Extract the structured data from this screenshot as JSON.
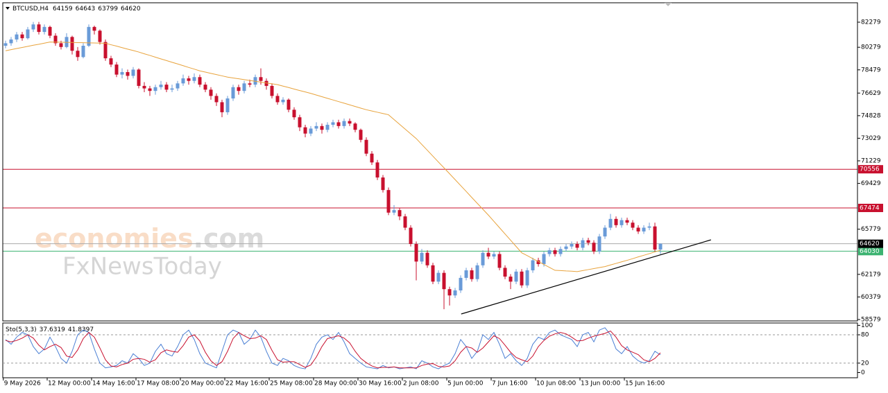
{
  "chart_data": {
    "type": "candlestick",
    "symbol": "BTCUSD,H4",
    "bull_color": "#6a9bd8",
    "bear_color": "#c8102e",
    "candles": [
      [
        80400,
        80800,
        80200,
        80600
      ],
      [
        80600,
        81100,
        80400,
        80900
      ],
      [
        80900,
        81500,
        80700,
        81300
      ],
      [
        81300,
        81500,
        80800,
        81000
      ],
      [
        81000,
        81900,
        80900,
        81700
      ],
      [
        81700,
        82300,
        81500,
        82100
      ],
      [
        82100,
        82300,
        81300,
        81500
      ],
      [
        81500,
        82100,
        81300,
        81900
      ],
      [
        81900,
        82000,
        81000,
        81200
      ],
      [
        81200,
        81400,
        80400,
        80600
      ],
      [
        80600,
        80800,
        80100,
        80300
      ],
      [
        80300,
        81400,
        80200,
        81100
      ],
      [
        81100,
        81200,
        79700,
        80000
      ],
      [
        80000,
        80300,
        79200,
        79500
      ],
      [
        79500,
        80600,
        79400,
        80400
      ],
      [
        80400,
        82100,
        80300,
        81900
      ],
      [
        81900,
        82000,
        81300,
        81600
      ],
      [
        81600,
        81700,
        80500,
        80700
      ],
      [
        80700,
        80900,
        79200,
        79400
      ],
      [
        79400,
        79600,
        78700,
        78900
      ],
      [
        78900,
        79100,
        77900,
        78100
      ],
      [
        78100,
        78600,
        77800,
        78300
      ],
      [
        78300,
        78500,
        77700,
        78000
      ],
      [
        78000,
        78700,
        77800,
        78500
      ],
      [
        78500,
        78600,
        77000,
        77200
      ],
      [
        77200,
        77500,
        76700,
        77000
      ],
      [
        77000,
        77200,
        76400,
        76800
      ],
      [
        76800,
        77300,
        76500,
        77100
      ],
      [
        77100,
        77600,
        76900,
        77300
      ],
      [
        77300,
        77500,
        76700,
        76900
      ],
      [
        76900,
        77300,
        76700,
        77000
      ],
      [
        77000,
        77600,
        76800,
        77400
      ],
      [
        77400,
        78100,
        77200,
        77800
      ],
      [
        77800,
        78000,
        77300,
        77600
      ],
      [
        77600,
        78200,
        77400,
        77900
      ],
      [
        77900,
        78100,
        77100,
        77300
      ],
      [
        77300,
        77500,
        76700,
        76900
      ],
      [
        76900,
        77100,
        76100,
        76400
      ],
      [
        76400,
        76600,
        75600,
        75900
      ],
      [
        75900,
        76100,
        74700,
        75100
      ],
      [
        75100,
        76400,
        74900,
        76200
      ],
      [
        76200,
        77300,
        76000,
        77100
      ],
      [
        77100,
        77300,
        76500,
        76800
      ],
      [
        76800,
        77600,
        76600,
        77400
      ],
      [
        77400,
        77700,
        77100,
        77300
      ],
      [
        77300,
        78100,
        77100,
        77900
      ],
      [
        77900,
        78600,
        77300,
        77600
      ],
      [
        77600,
        77800,
        76900,
        77200
      ],
      [
        77200,
        77400,
        76200,
        76400
      ],
      [
        76400,
        76600,
        75700,
        75900
      ],
      [
        75900,
        76300,
        75700,
        76100
      ],
      [
        76100,
        76200,
        75100,
        75300
      ],
      [
        75300,
        75500,
        74500,
        74700
      ],
      [
        74700,
        74900,
        73600,
        73900
      ],
      [
        73900,
        74100,
        73100,
        73400
      ],
      [
        73400,
        74000,
        73200,
        73800
      ],
      [
        73800,
        74300,
        73600,
        74000
      ],
      [
        74000,
        74200,
        73400,
        73700
      ],
      [
        73700,
        74300,
        73500,
        74100
      ],
      [
        74100,
        74500,
        73900,
        74300
      ],
      [
        74300,
        74500,
        73800,
        74000
      ],
      [
        74000,
        74600,
        73800,
        74400
      ],
      [
        74400,
        74600,
        74000,
        74200
      ],
      [
        74200,
        74300,
        73500,
        73700
      ],
      [
        73700,
        73800,
        72700,
        72900
      ],
      [
        72900,
        73100,
        71600,
        71800
      ],
      [
        71800,
        72000,
        70900,
        71100
      ],
      [
        71100,
        71300,
        69700,
        69900
      ],
      [
        69900,
        70100,
        68700,
        68900
      ],
      [
        68900,
        69100,
        66900,
        67100
      ],
      [
        67100,
        67700,
        66900,
        67300
      ],
      [
        67300,
        67500,
        66500,
        66800
      ],
      [
        66800,
        67000,
        65700,
        65900
      ],
      [
        65900,
        66100,
        64400,
        64600
      ],
      [
        64600,
        64800,
        61700,
        63200
      ],
      [
        63200,
        64200,
        63000,
        63900
      ],
      [
        63900,
        64100,
        62700,
        62900
      ],
      [
        62900,
        63100,
        61400,
        61600
      ],
      [
        61600,
        62500,
        61400,
        62300
      ],
      [
        62300,
        62500,
        59400,
        61000
      ],
      [
        61000,
        61200,
        59700,
        60500
      ],
      [
        60500,
        61100,
        60300,
        60900
      ],
      [
        60900,
        62100,
        60700,
        61900
      ],
      [
        61900,
        62700,
        61700,
        62500
      ],
      [
        62500,
        62700,
        61600,
        61800
      ],
      [
        61800,
        63100,
        61600,
        62900
      ],
      [
        62900,
        64100,
        62700,
        63900
      ],
      [
        63900,
        64300,
        63400,
        63600
      ],
      [
        63600,
        64000,
        63400,
        63800
      ],
      [
        63800,
        64000,
        62500,
        62700
      ],
      [
        62700,
        62900,
        61800,
        62000
      ],
      [
        62000,
        62200,
        61000,
        61600
      ],
      [
        61600,
        62600,
        61400,
        62400
      ],
      [
        62400,
        62600,
        61100,
        61300
      ],
      [
        61300,
        62700,
        61100,
        62500
      ],
      [
        62500,
        63500,
        62300,
        63300
      ],
      [
        63300,
        63500,
        62800,
        63000
      ],
      [
        63000,
        64000,
        62800,
        63800
      ],
      [
        63800,
        64300,
        63600,
        64100
      ],
      [
        64100,
        64300,
        63600,
        63800
      ],
      [
        63800,
        64400,
        63600,
        64200
      ],
      [
        64200,
        64600,
        64000,
        64400
      ],
      [
        64400,
        64800,
        64200,
        64600
      ],
      [
        64600,
        64800,
        64100,
        64300
      ],
      [
        64300,
        65100,
        64100,
        64900
      ],
      [
        64900,
        65100,
        64500,
        64700
      ],
      [
        64700,
        64900,
        63800,
        64000
      ],
      [
        64000,
        65400,
        63800,
        65200
      ],
      [
        65200,
        66100,
        65000,
        65900
      ],
      [
        65900,
        67000,
        65700,
        66600
      ],
      [
        66600,
        66800,
        65900,
        66100
      ],
      [
        66100,
        66700,
        65900,
        66500
      ],
      [
        66500,
        66700,
        66100,
        66300
      ],
      [
        66300,
        66500,
        65700,
        65900
      ],
      [
        65900,
        66100,
        65400,
        65600
      ],
      [
        65600,
        66100,
        65400,
        65900
      ],
      [
        65900,
        66300,
        65700,
        66000
      ],
      [
        66000,
        66300,
        64000,
        64159
      ],
      [
        64159,
        64643,
        63799,
        64620
      ]
    ],
    "ma": {
      "color": "#e8a33c",
      "values": [
        80000,
        80090,
        80180,
        80260,
        80350,
        80440,
        80520,
        80610,
        80700,
        80690,
        80680,
        80670,
        80660,
        80650,
        80640,
        80630,
        80620,
        80610,
        80600,
        80480,
        80370,
        80250,
        80130,
        80020,
        79900,
        79760,
        79630,
        79490,
        79350,
        79220,
        79080,
        78950,
        78810,
        78670,
        78540,
        78400,
        78300,
        78200,
        78100,
        78000,
        77900,
        77830,
        77770,
        77700,
        77630,
        77570,
        77500,
        77430,
        77370,
        77300,
        77180,
        77070,
        76950,
        76830,
        76720,
        76600,
        76470,
        76340,
        76210,
        76080,
        75950,
        75820,
        75690,
        75560,
        75430,
        75300,
        75200,
        75100,
        75000,
        74900,
        74520,
        74140,
        73760,
        73380,
        73000,
        72530,
        72070,
        71600,
        71130,
        70670,
        70200,
        69730,
        69260,
        68790,
        68310,
        67840,
        67370,
        66900,
        66400,
        65900,
        65400,
        64900,
        64400,
        63900,
        63670,
        63430,
        63200,
        62970,
        62730,
        62500,
        62480,
        62450,
        62430,
        62400,
        62480,
        62560,
        62640,
        62720,
        62800,
        62930,
        63050,
        63180,
        63300,
        63430,
        63570,
        63700,
        63830,
        63970,
        64100
      ]
    },
    "trendline": {
      "color": "#000000",
      "x": [
        82.1,
        127.1
      ],
      "y": [
        59021,
        64932
      ]
    },
    "levels": [
      {
        "value": 70556,
        "color": "#c8102e"
      },
      {
        "value": 67474,
        "color": "#c8102e"
      },
      {
        "value": 64030,
        "color": "#3cb371"
      }
    ],
    "current_color": "#000000",
    "xlim": [
      -0.5,
      153.5
    ],
    "ylim": [
      58469,
      83770
    ],
    "yticks": [
      82279,
      80279,
      78479,
      76629,
      74828,
      73029,
      71229,
      69429,
      65779,
      62179,
      60379,
      58579
    ],
    "xticks": [
      {
        "value": -0.4,
        "label": "9 May 2026"
      },
      {
        "value": 7.5,
        "label": "12 May 00:00"
      },
      {
        "value": 15.5,
        "label": "14 May 16:00"
      },
      {
        "value": 23.5,
        "label": "17 May 08:00"
      },
      {
        "value": 31.5,
        "label": "20 May 00:00"
      },
      {
        "value": 39.5,
        "label": "22 May 16:00"
      },
      {
        "value": 47.5,
        "label": "25 May 08:00"
      },
      {
        "value": 55.5,
        "label": "28 May 00:00"
      },
      {
        "value": 63.5,
        "label": "30 May 16:00"
      },
      {
        "value": 71.5,
        "label": "2 Jun 08:00"
      },
      {
        "value": 79.5,
        "label": "5 Jun 00:00"
      },
      {
        "value": 87.5,
        "label": "7 Jun 16:00"
      },
      {
        "value": 95.5,
        "label": "10 Jun 08:00"
      },
      {
        "value": 103.5,
        "label": "13 Jun 00:00"
      },
      {
        "value": 111.5,
        "label": "15 Jun 16:00"
      }
    ],
    "indicator": {
      "type": "line",
      "name": "Sto(5,3,3)",
      "ylim": [
        -11,
        105
      ],
      "yticks": [
        0,
        20,
        80,
        100
      ],
      "grid": "dashed",
      "series": [
        {
          "color": "#4a7fd4",
          "values": [
            70,
            60,
            75,
            85,
            80,
            55,
            40,
            50,
            75,
            55,
            30,
            20,
            45,
            80,
            90,
            85,
            50,
            20,
            10,
            12,
            15,
            25,
            20,
            40,
            30,
            15,
            20,
            45,
            60,
            40,
            35,
            55,
            80,
            90,
            70,
            40,
            20,
            15,
            10,
            45,
            80,
            90,
            85,
            60,
            70,
            90,
            75,
            45,
            20,
            15,
            30,
            25,
            15,
            10,
            8,
            30,
            60,
            75,
            80,
            70,
            85,
            65,
            40,
            30,
            20,
            12,
            10,
            8,
            15,
            10,
            12,
            8,
            10,
            12,
            8,
            25,
            20,
            12,
            8,
            15,
            20,
            40,
            70,
            55,
            30,
            45,
            80,
            70,
            85,
            60,
            30,
            40,
            25,
            15,
            30,
            60,
            75,
            70,
            85,
            90,
            80,
            75,
            70,
            55,
            80,
            85,
            65,
            90,
            95,
            80,
            50,
            40,
            55,
            35,
            25,
            20,
            25,
            45,
            37.6319
          ]
        },
        {
          "color": "#c8102e",
          "values": [
            68,
            65,
            68,
            73,
            80,
            73,
            58,
            48,
            55,
            60,
            53,
            35,
            32,
            48,
            72,
            85,
            75,
            52,
            27,
            14,
            12,
            17,
            20,
            28,
            30,
            28,
            22,
            27,
            42,
            48,
            45,
            43,
            57,
            75,
            80,
            67,
            43,
            25,
            15,
            23,
            45,
            72,
            85,
            78,
            72,
            73,
            78,
            70,
            47,
            27,
            22,
            23,
            23,
            17,
            11,
            16,
            33,
            55,
            72,
            75,
            78,
            73,
            63,
            45,
            30,
            21,
            14,
            10,
            11,
            11,
            12,
            10,
            10,
            10,
            10,
            15,
            18,
            19,
            13,
            12,
            14,
            25,
            43,
            55,
            52,
            43,
            52,
            65,
            78,
            72,
            58,
            43,
            32,
            27,
            23,
            35,
            55,
            68,
            77,
            82,
            85,
            82,
            75,
            67,
            68,
            73,
            77,
            80,
            83,
            88,
            75,
            57,
            48,
            43,
            38,
            27,
            23,
            30,
            41.8397
          ]
        }
      ]
    },
    "watermark": {
      "brand": "economies",
      "domain": ".com",
      "name": "FxNewsToday"
    }
  }
}
